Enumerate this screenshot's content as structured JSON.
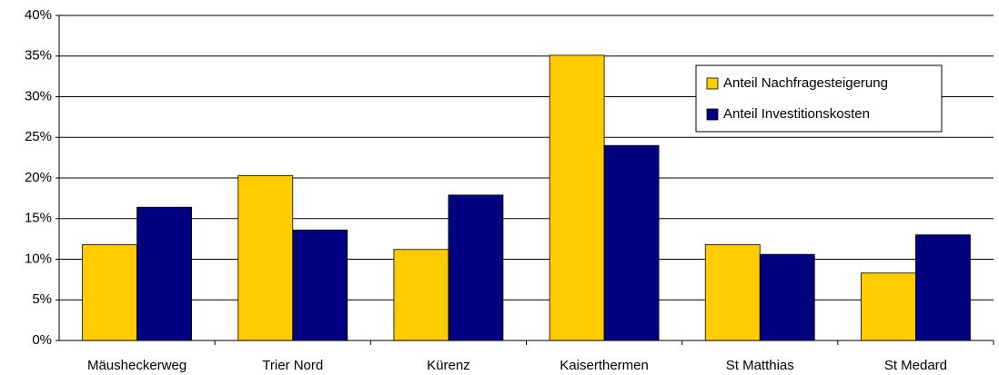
{
  "chart_data": {
    "type": "bar",
    "categories": [
      "Mäusheckerweg",
      "Trier Nord",
      "Kürenz",
      "Kaiserthermen",
      "St Matthias",
      "St Medard"
    ],
    "series": [
      {
        "name": "Anteil Nachfragesteigerung",
        "color": "#ffcc00",
        "values": [
          11.8,
          20.3,
          11.2,
          35.1,
          11.8,
          8.3
        ]
      },
      {
        "name": "Anteil Investitionskosten",
        "color": "#000080",
        "values": [
          16.4,
          13.6,
          17.9,
          24.0,
          10.6,
          13.0
        ]
      }
    ],
    "ylim": [
      0,
      40
    ],
    "yticks": [
      {
        "value": 0,
        "label": "0%"
      },
      {
        "value": 5,
        "label": "5%"
      },
      {
        "value": 10,
        "label": "10%"
      },
      {
        "value": 15,
        "label": "15%"
      },
      {
        "value": 20,
        "label": "20%"
      },
      {
        "value": 25,
        "label": "25%"
      },
      {
        "value": 30,
        "label": "30%"
      },
      {
        "value": 35,
        "label": "35%"
      },
      {
        "value": 40,
        "label": "40%"
      }
    ],
    "grid": true,
    "legend_position": "upper right"
  }
}
